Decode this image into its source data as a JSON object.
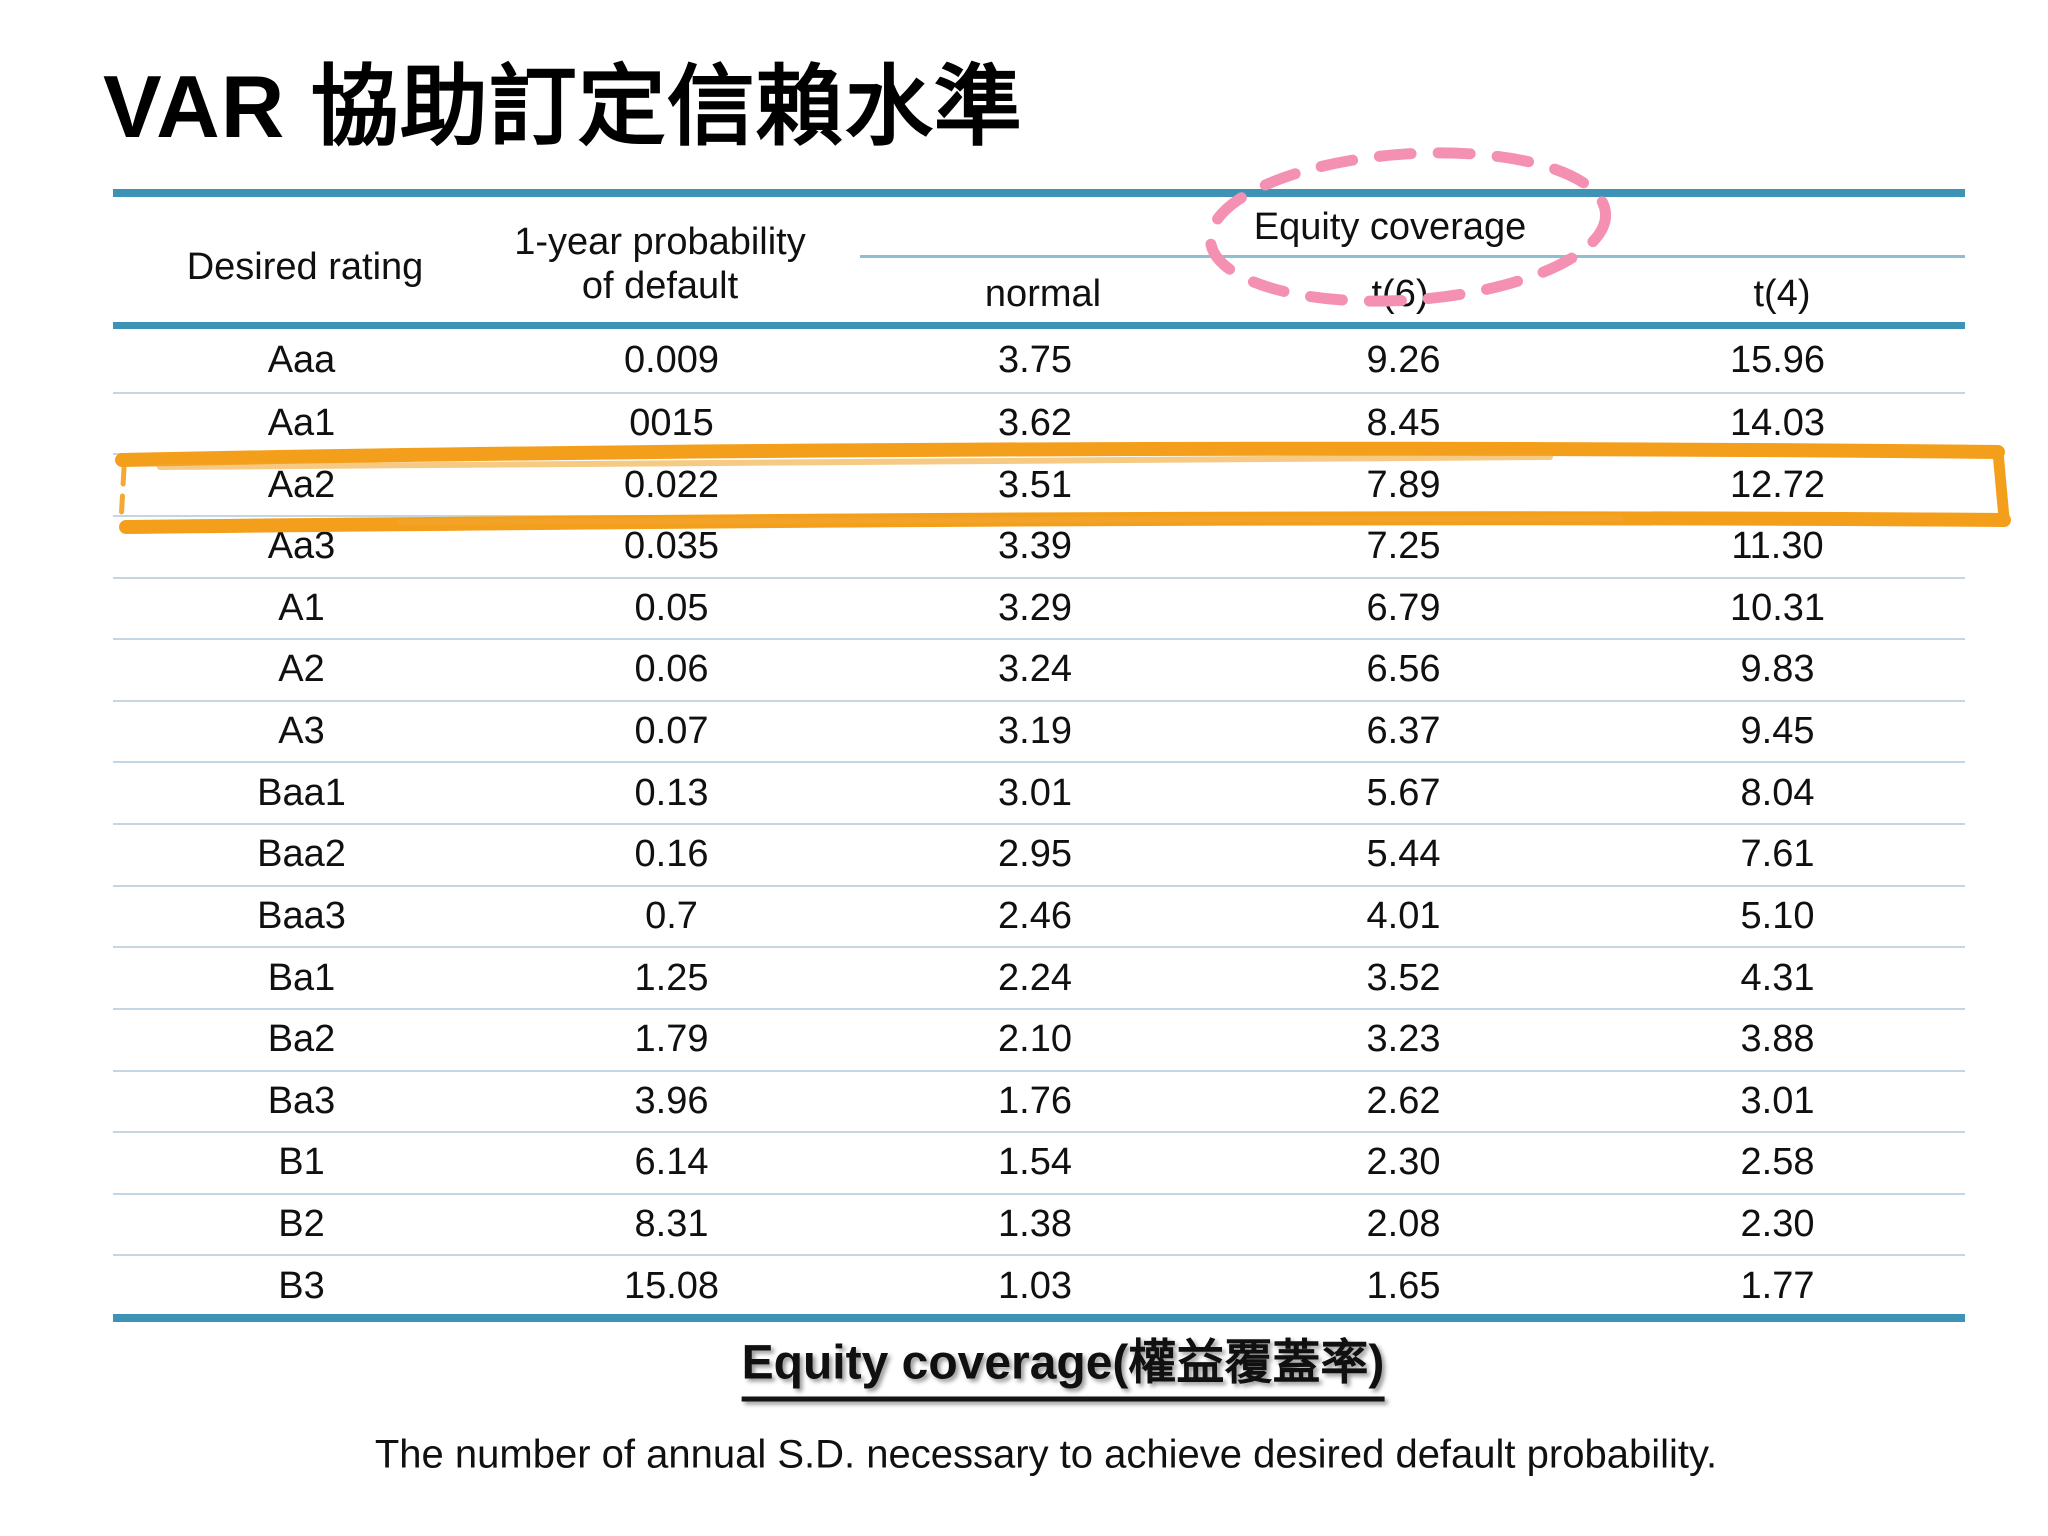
{
  "slide": {
    "title": "VAR 協助訂定信賴水準"
  },
  "table": {
    "headers": {
      "desired_rating": "Desired rating",
      "probability_line1": "1-year probability",
      "probability_line2": "of default",
      "equity_coverage": "Equity coverage",
      "normal": "normal",
      "t6": "t(6)",
      "t4": "t(4)"
    },
    "rows": [
      {
        "rating": "Aaa",
        "pd": "0.009",
        "normal": "3.75",
        "t6": "9.26",
        "t4": "15.96"
      },
      {
        "rating": "Aa1",
        "pd": "0015",
        "normal": "3.62",
        "t6": "8.45",
        "t4": "14.03"
      },
      {
        "rating": "Aa2",
        "pd": "0.022",
        "normal": "3.51",
        "t6": "7.89",
        "t4": "12.72"
      },
      {
        "rating": "Aa3",
        "pd": "0.035",
        "normal": "3.39",
        "t6": "7.25",
        "t4": "11.30"
      },
      {
        "rating": "A1",
        "pd": "0.05",
        "normal": "3.29",
        "t6": "6.79",
        "t4": "10.31"
      },
      {
        "rating": "A2",
        "pd": "0.06",
        "normal": "3.24",
        "t6": "6.56",
        "t4": "9.83"
      },
      {
        "rating": "A3",
        "pd": "0.07",
        "normal": "3.19",
        "t6": "6.37",
        "t4": "9.45"
      },
      {
        "rating": "Baa1",
        "pd": "0.13",
        "normal": "3.01",
        "t6": "5.67",
        "t4": "8.04"
      },
      {
        "rating": "Baa2",
        "pd": "0.16",
        "normal": "2.95",
        "t6": "5.44",
        "t4": "7.61"
      },
      {
        "rating": "Baa3",
        "pd": "0.7",
        "normal": "2.46",
        "t6": "4.01",
        "t4": "5.10"
      },
      {
        "rating": "Ba1",
        "pd": "1.25",
        "normal": "2.24",
        "t6": "3.52",
        "t4": "4.31"
      },
      {
        "rating": "Ba2",
        "pd": "1.79",
        "normal": "2.10",
        "t6": "3.23",
        "t4": "3.88"
      },
      {
        "rating": "Ba3",
        "pd": "3.96",
        "normal": "1.76",
        "t6": "2.62",
        "t4": "3.01"
      },
      {
        "rating": "B1",
        "pd": "6.14",
        "normal": "1.54",
        "t6": "2.30",
        "t4": "2.58"
      },
      {
        "rating": "B2",
        "pd": "8.31",
        "normal": "1.38",
        "t6": "2.08",
        "t4": "2.30"
      },
      {
        "rating": "B3",
        "pd": "15.08",
        "normal": "1.03",
        "t6": "1.65",
        "t4": "1.77"
      }
    ],
    "highlighted_rating": "Aa2"
  },
  "footer": {
    "equity_label": "Equity coverage(權益覆蓋率)",
    "note": "The number of annual S.D. necessary to achieve desired default probability."
  },
  "colors": {
    "teal_rule": "#3d92b6",
    "row_separator": "#c2d7e3",
    "highlight_orange": "#F49F1C",
    "dashed_pink": "#F491B3"
  }
}
